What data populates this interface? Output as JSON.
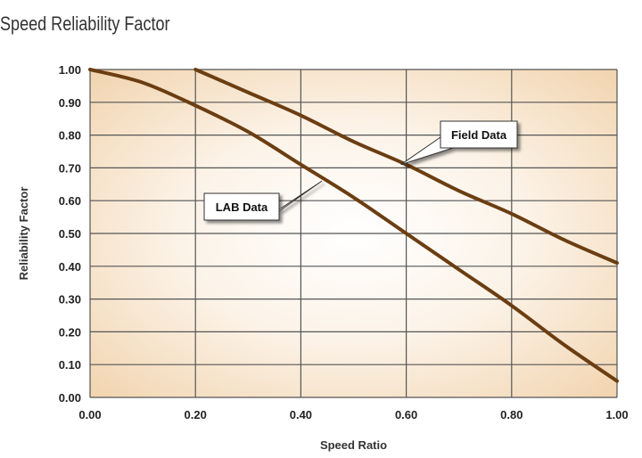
{
  "chart_data": {
    "type": "line",
    "title": "Speed Reliability Factor",
    "xlabel": "Speed Ratio",
    "ylabel": "Reliability Factor",
    "xlim": [
      0,
      1
    ],
    "ylim": [
      0,
      1
    ],
    "x_ticks": [
      "0.00",
      "0.20",
      "0.40",
      "0.60",
      "0.80",
      "1.00"
    ],
    "y_ticks": [
      "0.00",
      "0.10",
      "0.20",
      "0.30",
      "0.40",
      "0.50",
      "0.60",
      "0.70",
      "0.80",
      "0.90",
      "1.00"
    ],
    "grid": true,
    "series": [
      {
        "name": "LAB Data",
        "x": [
          0,
          0.1,
          0.2,
          0.3,
          0.4,
          0.5,
          0.6,
          0.7,
          0.8,
          0.9,
          1.0
        ],
        "y": [
          1.0,
          0.96,
          0.89,
          0.81,
          0.71,
          0.61,
          0.5,
          0.39,
          0.28,
          0.16,
          0.05
        ]
      },
      {
        "name": "Field Data",
        "x": [
          0.2,
          0.3,
          0.4,
          0.5,
          0.6,
          0.7,
          0.8,
          0.9,
          1.0
        ],
        "y": [
          1.0,
          0.93,
          0.86,
          0.78,
          0.71,
          0.63,
          0.56,
          0.48,
          0.41
        ]
      }
    ],
    "annotations": [
      {
        "text": "LAB Data",
        "target_x": 0.44,
        "target_y": 0.66
      },
      {
        "text": "Field Data",
        "target_x": 0.59,
        "target_y": 0.71
      }
    ],
    "colors": {
      "line": "#6b3e12",
      "grid": "#555555",
      "plot_background": "#f3d9b8"
    }
  }
}
